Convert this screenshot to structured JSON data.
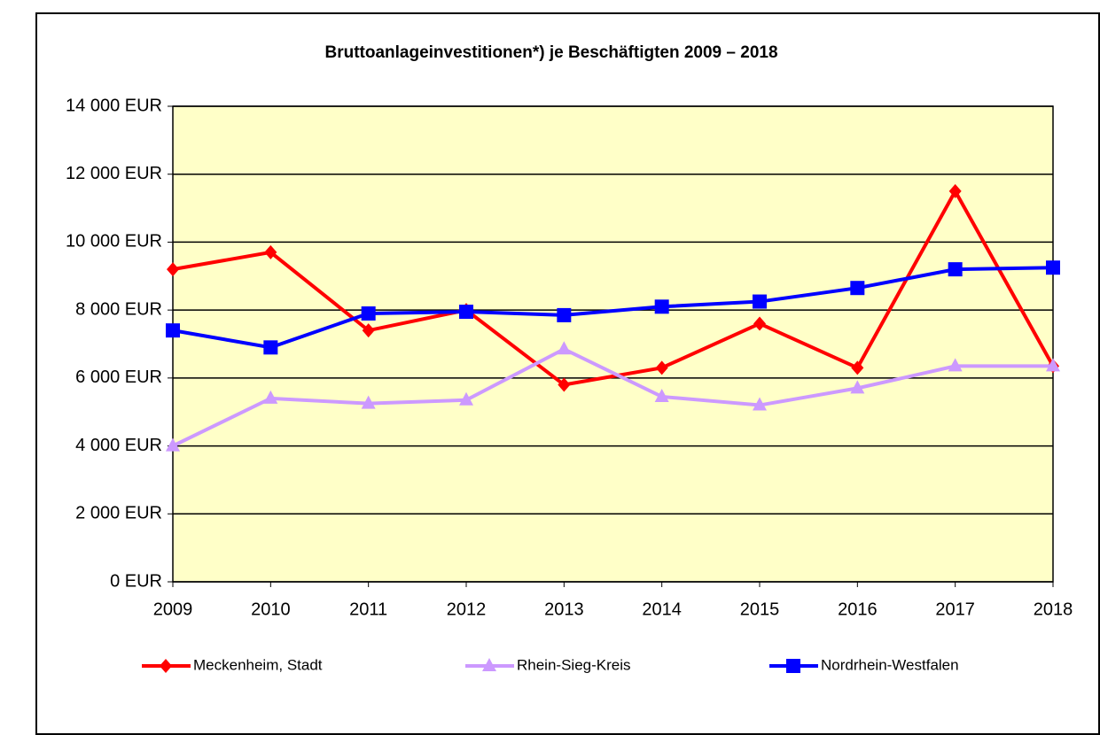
{
  "chart_data": {
    "type": "line",
    "title": "Bruttoanlageinvestitionen*) je Beschäftigten 2009 – 2018",
    "categories": [
      "2009",
      "2010",
      "2011",
      "2012",
      "2013",
      "2014",
      "2015",
      "2016",
      "2017",
      "2018"
    ],
    "series": [
      {
        "name": "Meckenheim, Stadt",
        "color": "#ff0000",
        "marker": "diamond",
        "values": [
          9200,
          9700,
          7400,
          8000,
          5800,
          6300,
          7600,
          6300,
          11500,
          6350
        ]
      },
      {
        "name": "Rhein-Sieg-Kreis",
        "color": "#cc99ff",
        "marker": "triangle",
        "values": [
          4000,
          5400,
          5250,
          5350,
          6850,
          5450,
          5200,
          5700,
          6350,
          6350
        ]
      },
      {
        "name": "Nordrhein-Westfalen",
        "color": "#0000ff",
        "marker": "square",
        "values": [
          7400,
          6900,
          7900,
          7950,
          7850,
          8100,
          8250,
          8650,
          9200,
          9250
        ]
      }
    ],
    "ylim": [
      0,
      14000
    ],
    "yticks": [
      {
        "value": 0,
        "label": "0 EUR"
      },
      {
        "value": 2000,
        "label": "2 000 EUR"
      },
      {
        "value": 4000,
        "label": "4 000 EUR"
      },
      {
        "value": 6000,
        "label": "6 000 EUR"
      },
      {
        "value": 8000,
        "label": "8 000 EUR"
      },
      {
        "value": 10000,
        "label": "10 000 EUR"
      },
      {
        "value": 12000,
        "label": "12 000 EUR"
      },
      {
        "value": 14000,
        "label": "14 000 EUR"
      }
    ],
    "grid": true,
    "legend": "bottom",
    "plot_background": "#ffffc8"
  }
}
